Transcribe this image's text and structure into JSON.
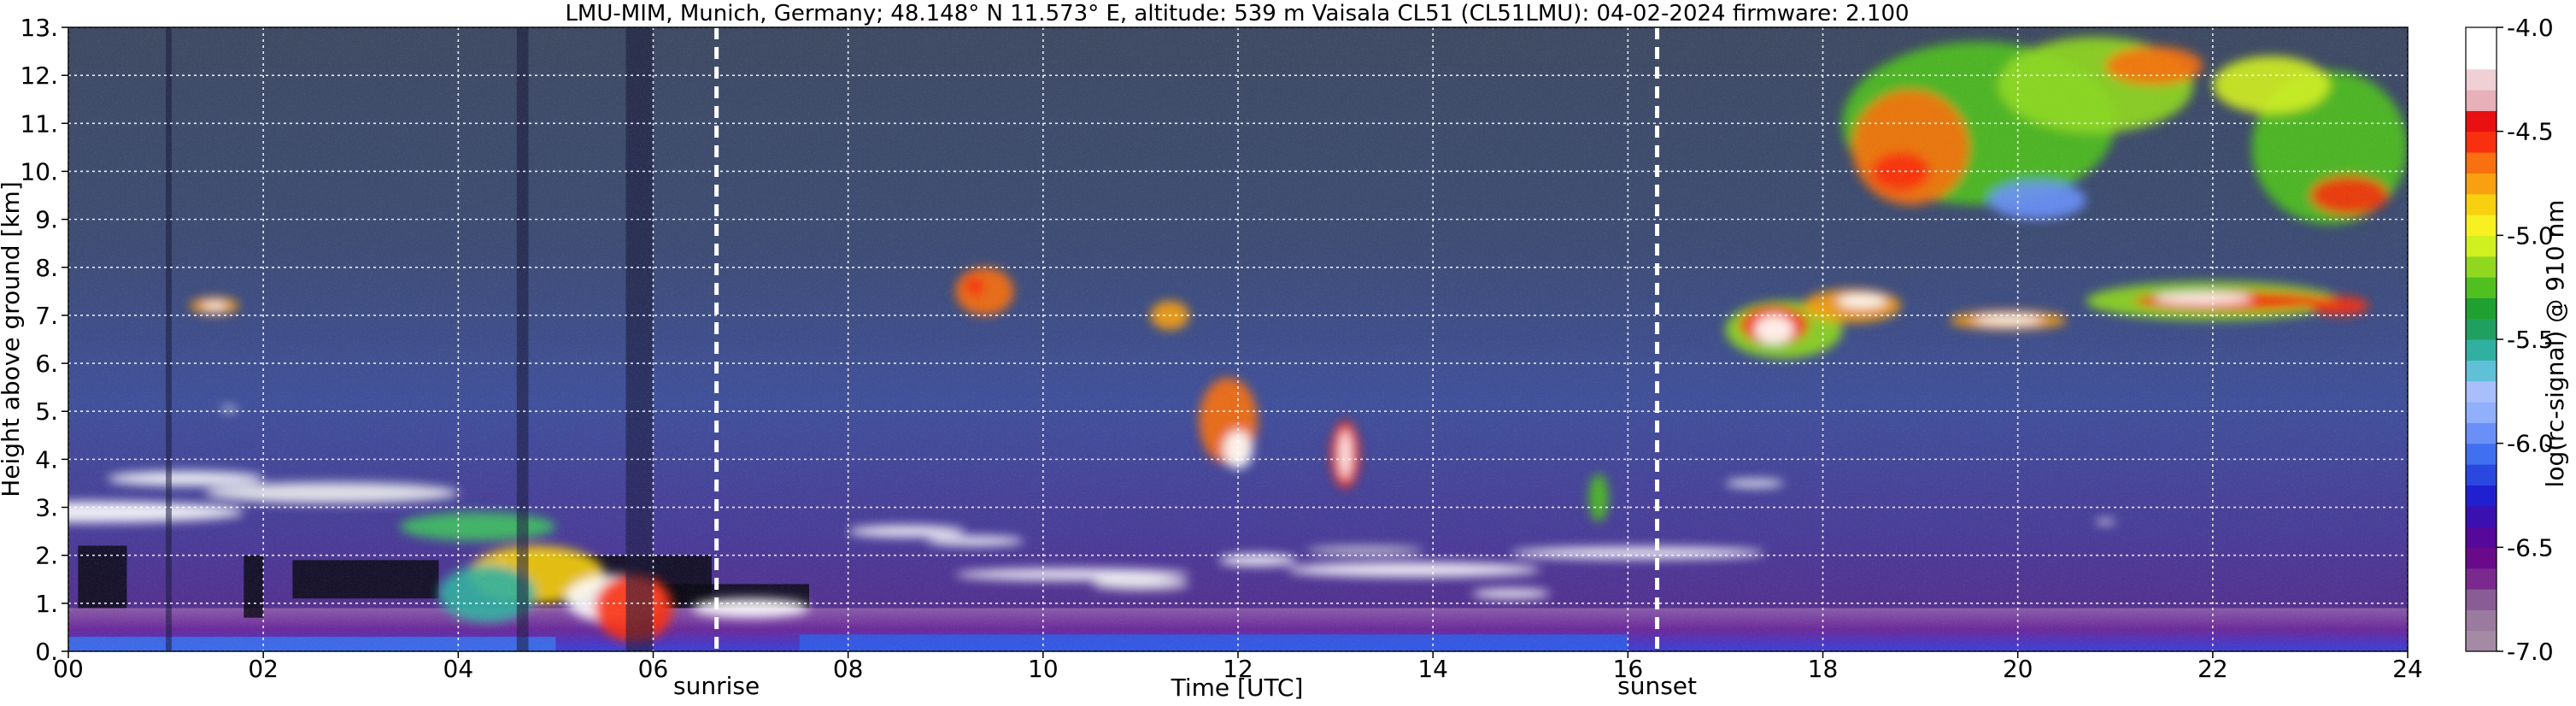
{
  "chart_data": {
    "type": "heatmap",
    "title": "LMU-MIM, Munich, Germany; 48.148° N 11.573° E, altitude: 539 m    Vaisala CL51 (CL51LMU): 04-02-2024    firmware: 2.100",
    "xlabel": "Time [UTC]",
    "ylabel": "Height above ground [km]",
    "xlim": [
      0,
      24
    ],
    "ylim": [
      0,
      13
    ],
    "x_ticks": [
      "00",
      "02",
      "04",
      "06",
      "08",
      "10",
      "12",
      "14",
      "16",
      "18",
      "20",
      "22",
      "24"
    ],
    "x_tick_values": [
      0,
      2,
      4,
      6,
      8,
      10,
      12,
      14,
      16,
      18,
      20,
      22,
      24
    ],
    "y_ticks": [
      "0.",
      "1.",
      "2.",
      "3.",
      "4.",
      "5.",
      "6.",
      "7.",
      "8.",
      "9.",
      "10.",
      "11.",
      "12.",
      "13."
    ],
    "y_tick_values": [
      0,
      1,
      2,
      3,
      4,
      5,
      6,
      7,
      8,
      9,
      10,
      11,
      12,
      13
    ],
    "grid": true,
    "colorbar": {
      "label": "log(rc-signal) @ 910 nm",
      "range": [
        -7.0,
        -4.0
      ],
      "ticks": [
        "-4.0",
        "-4.5",
        "-5.0",
        "-5.5",
        "-6.0",
        "-6.5",
        "-7.0"
      ],
      "tick_values": [
        -4.0,
        -4.5,
        -5.0,
        -5.5,
        -6.0,
        -6.5,
        -7.0
      ],
      "colors": [
        "#a58aa5",
        "#9a7a9e",
        "#8a5c96",
        "#7a2a8e",
        "#6a0a8a",
        "#55089a",
        "#3a10b0",
        "#2020d0",
        "#2a48e0",
        "#4070f0",
        "#6a90f8",
        "#90b0fc",
        "#a8bffc",
        "#60c0d8",
        "#30b0a0",
        "#20a060",
        "#20a030",
        "#50c020",
        "#90d820",
        "#d0f020",
        "#f8f020",
        "#f8d010",
        "#f8a010",
        "#f87010",
        "#f83010",
        "#e81010",
        "#e8b0b8",
        "#f0d0d4",
        "#ffffff",
        "#ffffff"
      ]
    },
    "annotations": [
      {
        "label": "sunrise",
        "x": 6.65
      },
      {
        "label": "sunset",
        "x": 16.3
      }
    ],
    "features": [
      {
        "kind": "boundary_layer_aerosol",
        "x_range": [
          0,
          24
        ],
        "top_km": 0.9
      },
      {
        "kind": "low_cloud",
        "x_range": [
          0,
          7.5
        ],
        "height_km": [
          0.5,
          3.2
        ]
      },
      {
        "kind": "cloud_layer",
        "x_range": [
          7.6,
          15.2
        ],
        "height_km": [
          1.0,
          2.3
        ]
      },
      {
        "kind": "cloud_layer",
        "x_range": [
          15.2,
          17.5
        ],
        "height_km": [
          2.0,
          2.2
        ]
      },
      {
        "kind": "cirrus",
        "x_range": [
          17.0,
          23.5
        ],
        "height_km": [
          5.8,
          7.8
        ]
      },
      {
        "kind": "cirrus",
        "x_range": [
          18.3,
          24
        ],
        "height_km": [
          8.9,
          12.8
        ]
      },
      {
        "kind": "fall_streak",
        "x_range": [
          11.5,
          12.2
        ],
        "height_km": [
          3.7,
          5.6
        ]
      },
      {
        "kind": "fall_streak",
        "x_range": [
          12.9,
          13.2
        ],
        "height_km": [
          3.4,
          4.8
        ]
      }
    ]
  }
}
